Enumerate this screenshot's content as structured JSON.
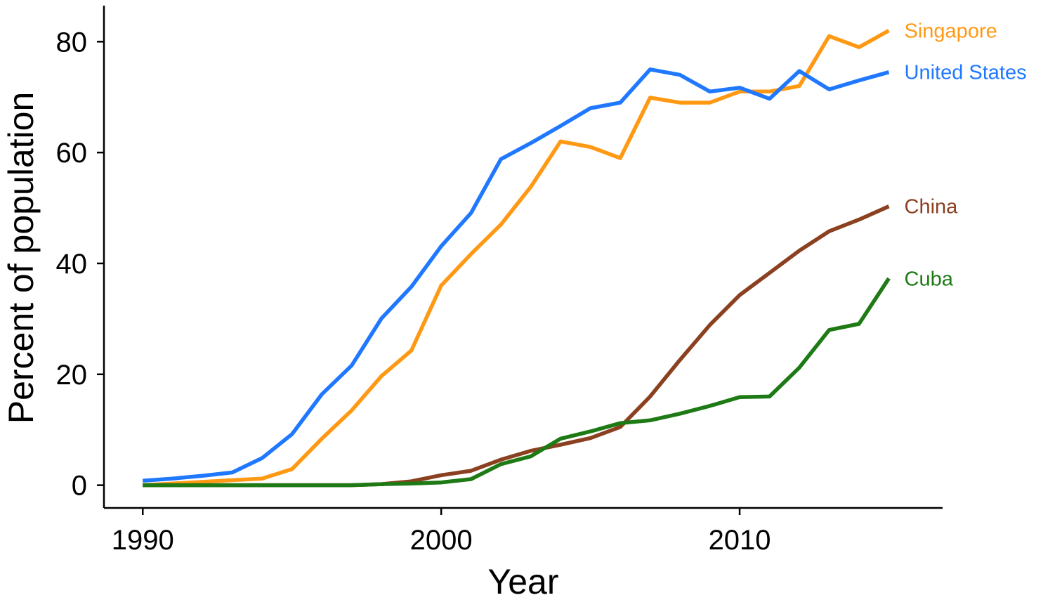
{
  "chart_data": {
    "type": "line",
    "title": "",
    "xlabel": "Year",
    "ylabel": "Percent of population",
    "xlim": [
      1988.7,
      2016.8
    ],
    "ylim": [
      -4.1,
      86.5
    ],
    "xticks": [
      1990,
      2000,
      2010
    ],
    "yticks": [
      0,
      20,
      40,
      60,
      80
    ],
    "grid": false,
    "legend": "direct labels at line ends (right)",
    "x": [
      1990,
      1991,
      1992,
      1993,
      1994,
      1995,
      1996,
      1997,
      1998,
      1999,
      2000,
      2001,
      2002,
      2003,
      2004,
      2005,
      2006,
      2007,
      2008,
      2009,
      2010,
      2011,
      2012,
      2013,
      2014,
      2015
    ],
    "series": [
      {
        "name": "Singapore",
        "color": "#FF9914",
        "values": [
          0,
          0.3,
          0.6,
          0.9,
          1.2,
          2.9,
          8.4,
          13.5,
          19.7,
          24.3,
          36,
          41.7,
          47,
          53.8,
          62,
          61,
          59,
          69.9,
          69,
          69,
          71,
          71,
          72,
          81,
          79,
          82
        ]
      },
      {
        "name": "United States",
        "color": "#1F78FF",
        "values": [
          0.8,
          1.2,
          1.7,
          2.3,
          4.9,
          9.2,
          16.4,
          21.6,
          30.1,
          35.8,
          43.1,
          49.1,
          58.8,
          61.7,
          64.8,
          68,
          69,
          75,
          74,
          71,
          71.7,
          69.7,
          74.7,
          71.4,
          73,
          74.5
        ]
      },
      {
        "name": "China",
        "color": "#8B4020",
        "values": [
          0,
          0,
          0,
          0,
          0,
          0,
          0,
          0,
          0.2,
          0.7,
          1.8,
          2.6,
          4.6,
          6.2,
          7.3,
          8.5,
          10.5,
          16,
          22.6,
          28.9,
          34.3,
          38.3,
          42.3,
          45.8,
          47.9,
          50.3
        ]
      },
      {
        "name": "Cuba",
        "color": "#1E7A14",
        "values": [
          0,
          0,
          0,
          0,
          0,
          0,
          0,
          0,
          0.2,
          0.3,
          0.5,
          1.1,
          3.8,
          5.2,
          8.4,
          9.7,
          11.2,
          11.7,
          12.9,
          14.3,
          15.9,
          16,
          21.2,
          28,
          29.1,
          37.3
        ]
      }
    ]
  }
}
